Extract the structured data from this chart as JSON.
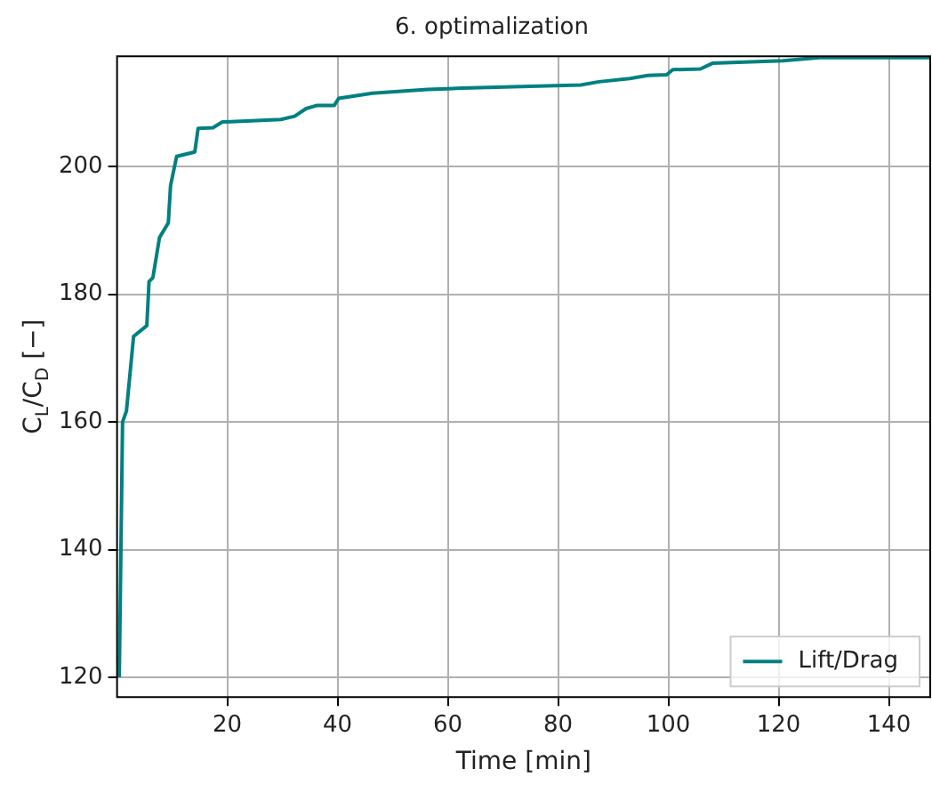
{
  "chart_data": {
    "type": "line",
    "title": "6. optimalization",
    "xlabel": "Time [min]",
    "ylabel": "C$_{L}$/C$_{D}$ [−]",
    "x": [
      0.4,
      1.0,
      1.7,
      3.0,
      5.4,
      5.8,
      6.5,
      7.7,
      9.3,
      9.7,
      10.8,
      14.1,
      14.7,
      17.4,
      19.1,
      29.7,
      32.2,
      34.3,
      36.3,
      39.4,
      40.2,
      46.3,
      56.3,
      62.6,
      84.1,
      87.4,
      93.0,
      96.3,
      99.7,
      100.8,
      105.8,
      108.0,
      120.8,
      127.4,
      147.5
    ],
    "series": [
      {
        "name": "Lift/Drag",
        "color": "#008080",
        "values": [
          120.0,
          160.0,
          161.7,
          173.4,
          175.1,
          182.0,
          182.6,
          188.9,
          191.2,
          197.0,
          201.6,
          202.3,
          206.0,
          206.1,
          207.0,
          207.4,
          207.9,
          209.1,
          209.6,
          209.6,
          210.7,
          211.5,
          212.1,
          212.3,
          212.8,
          213.3,
          213.8,
          214.3,
          214.4,
          215.2,
          215.3,
          216.2,
          216.6,
          217.1,
          217.1
        ]
      }
    ],
    "xlim": [
      0,
      147.5
    ],
    "ylim": [
      116.9,
      217.3
    ],
    "xticks": [
      20,
      40,
      60,
      80,
      100,
      120,
      140
    ],
    "yticks": [
      120,
      140,
      160,
      180,
      200
    ],
    "grid": true,
    "legend": "bottom right",
    "marker": "none",
    "line_style": "solid"
  }
}
